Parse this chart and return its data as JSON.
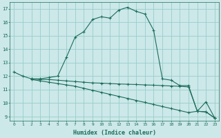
{
  "xlabel": "Humidex (Indice chaleur)",
  "ylabel": "",
  "bg_color": "#cce8e8",
  "grid_color": "#99cccc",
  "line_color": "#1a6b5a",
  "xlim": [
    -0.5,
    23.5
  ],
  "ylim": [
    8.7,
    17.5
  ],
  "xticks": [
    0,
    1,
    2,
    3,
    4,
    5,
    6,
    7,
    8,
    9,
    10,
    11,
    12,
    13,
    14,
    15,
    16,
    17,
    18,
    19,
    20,
    21,
    22,
    23
  ],
  "yticks": [
    9,
    10,
    11,
    12,
    13,
    14,
    15,
    16,
    17
  ],
  "curve1_x": [
    0,
    1,
    2,
    3,
    4,
    5,
    6,
    7,
    8,
    9,
    10,
    11,
    12,
    13,
    14,
    15,
    16,
    17,
    18,
    19,
    20,
    21,
    22,
    23
  ],
  "curve1_y": [
    12.3,
    12.0,
    11.8,
    11.8,
    11.9,
    12.0,
    13.4,
    14.9,
    15.3,
    16.2,
    16.4,
    16.3,
    16.9,
    17.1,
    16.8,
    16.6,
    15.4,
    11.8,
    11.7,
    11.3,
    11.3,
    9.4,
    10.1,
    8.9
  ],
  "curve2_x": [
    2,
    3,
    4,
    5,
    6,
    7,
    8,
    9,
    10,
    11,
    12,
    13,
    14,
    15,
    16,
    17,
    18,
    19,
    20,
    21,
    22,
    23
  ],
  "curve2_y": [
    11.8,
    11.75,
    11.75,
    11.7,
    11.65,
    11.6,
    11.55,
    11.5,
    11.48,
    11.45,
    11.42,
    11.4,
    11.38,
    11.35,
    11.33,
    11.3,
    11.27,
    11.25,
    11.2,
    9.4,
    9.35,
    8.9
  ],
  "curve3_x": [
    2,
    3,
    4,
    5,
    6,
    7,
    8,
    9,
    10,
    11,
    12,
    13,
    14,
    15,
    16,
    17,
    18,
    19,
    20,
    21,
    22,
    23
  ],
  "curve3_y": [
    11.75,
    11.65,
    11.55,
    11.45,
    11.35,
    11.25,
    11.1,
    10.95,
    10.8,
    10.65,
    10.5,
    10.35,
    10.2,
    10.05,
    9.9,
    9.75,
    9.6,
    9.45,
    9.3,
    9.4,
    9.35,
    8.9
  ]
}
